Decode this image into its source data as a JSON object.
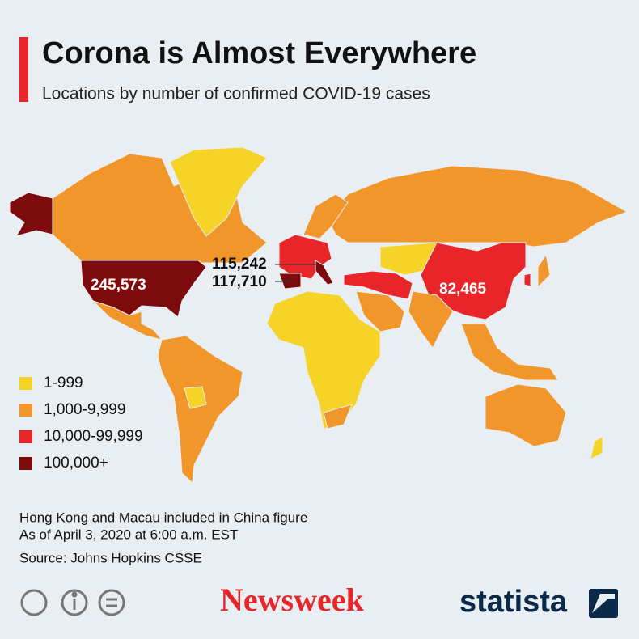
{
  "header": {
    "title": "Corona is Almost Everywhere",
    "subtitle": "Locations by number of confirmed COVID-19 cases"
  },
  "map": {
    "labels": [
      "245,573",
      "115,242",
      "117,710",
      "82,465"
    ]
  },
  "legend": {
    "items": [
      {
        "label": "1-999",
        "color": "#f5d327"
      },
      {
        "label": "1,000-9,999",
        "color": "#f0962a"
      },
      {
        "label": "10,000-99,999",
        "color": "#e8262a"
      },
      {
        "label": "100,000+",
        "color": "#7d0b0d"
      }
    ]
  },
  "notes": [
    "Hong Kong and Macau included in China figure",
    "As of April 3, 2020 at 6:00 a.m. EST"
  ],
  "source": "Source: Johns Hopkins CSSE",
  "footer": {
    "brands": [
      "Newsweek",
      "statista"
    ]
  }
}
